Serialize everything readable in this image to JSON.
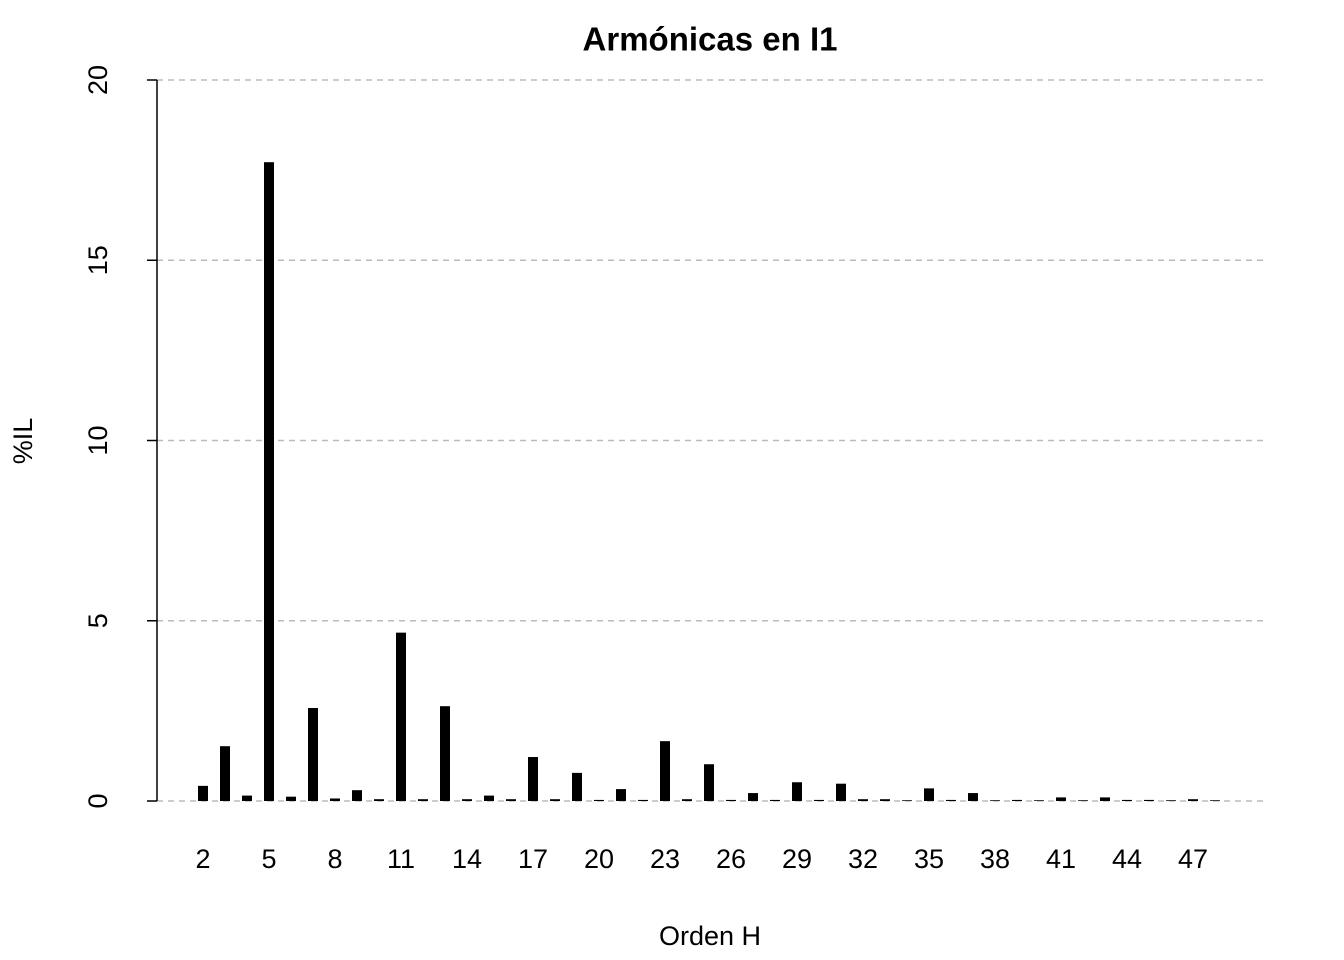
{
  "chart_data": {
    "type": "bar",
    "title": "Armónicas en I1",
    "x_label": "Orden H",
    "y_label": "%IL",
    "categories": [
      2,
      null,
      null,
      5,
      null,
      null,
      8,
      null,
      null,
      11,
      null,
      null,
      14,
      null,
      null,
      17,
      null,
      null,
      20,
      null,
      null,
      23,
      null,
      null,
      26,
      null,
      null,
      29,
      null,
      null,
      32,
      null,
      null,
      35,
      null,
      null,
      38,
      null,
      null,
      41,
      null,
      null,
      44,
      null,
      null,
      47,
      null
    ],
    "values": [
      0.42,
      1.52,
      0.15,
      17.72,
      0.12,
      2.58,
      0.07,
      0.3,
      0.05,
      4.67,
      0.05,
      2.63,
      0.05,
      0.15,
      0.05,
      1.22,
      0.05,
      0.78,
      0.03,
      0.33,
      0.03,
      1.66,
      0.05,
      1.02,
      0.03,
      0.22,
      0.03,
      0.52,
      0.03,
      0.48,
      0.05,
      0.05,
      0.02,
      0.35,
      0.03,
      0.22,
      0.02,
      0.03,
      0.02,
      0.1,
      0.02,
      0.1,
      0.03,
      0.03,
      0.02,
      0.05,
      0.02
    ],
    "color": "#000000",
    "ylim": [
      0,
      20
    ],
    "yticks": [
      0,
      5,
      10,
      15,
      20
    ],
    "grid": true
  }
}
